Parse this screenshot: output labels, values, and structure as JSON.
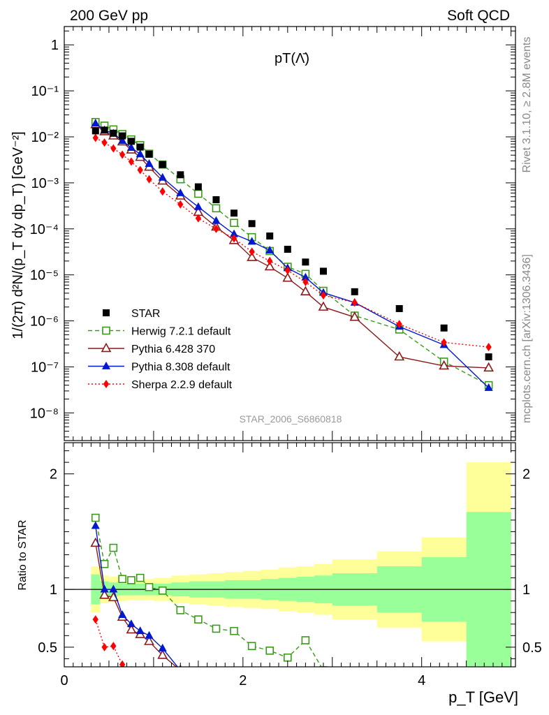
{
  "header": {
    "left": "200 GeV pp",
    "right": "Soft QCD"
  },
  "side": {
    "top": "Rivet 3.1.10, ≥ 2.8M events",
    "bottom": "mcplots.cern.ch [arXiv:1306.3436]"
  },
  "chart_data": [
    {
      "type": "scatter",
      "title": "pT(Λ̄)",
      "watermark": "STAR_2006_S6860818",
      "ylabel": "1/(2π) d²N/(p_T dy dp_T) [GeV⁻²]",
      "yscale": "log",
      "ylim": [
        2.5e-09,
        2.5
      ],
      "xlim": [
        0,
        5.05
      ],
      "ytick_labels": [
        "10⁻⁸",
        "10⁻⁷",
        "10⁻⁶",
        "10⁻⁵",
        "10⁻⁴",
        "10⁻³",
        "10⁻²",
        "10⁻¹",
        "1"
      ],
      "legend_position": "bottom-left",
      "series": [
        {
          "name": "STAR",
          "color": "#000000",
          "marker": "square-filled",
          "x": [
            0.35,
            0.45,
            0.55,
            0.65,
            0.75,
            0.85,
            0.95,
            1.1,
            1.3,
            1.5,
            1.7,
            1.9,
            2.1,
            2.3,
            2.5,
            2.7,
            2.9,
            3.25,
            3.75,
            4.25,
            4.75
          ],
          "y": [
            0.0135,
            0.014,
            0.012,
            0.0105,
            0.008,
            0.006,
            0.0042,
            0.0025,
            0.0015,
            0.00082,
            0.00043,
            0.00022,
            0.00013,
            7e-05,
            3.6e-05,
            1.9e-05,
            1.2e-05,
            4.3e-06,
            1.85e-06,
            7e-07,
            1.65e-07
          ]
        },
        {
          "name": "Herwig 7.2.1 default",
          "color": "#3a9a1a",
          "marker": "square-open",
          "line": "dashed",
          "x": [
            0.35,
            0.45,
            0.55,
            0.65,
            0.75,
            0.85,
            0.95,
            1.1,
            1.3,
            1.5,
            1.7,
            1.9,
            2.1,
            2.3,
            2.5,
            2.7,
            2.9,
            3.25,
            3.75,
            4.25,
            4.75
          ],
          "y": [
            0.021,
            0.0175,
            0.0145,
            0.0115,
            0.0088,
            0.0066,
            0.0043,
            0.0025,
            0.0012,
            0.00058,
            0.00028,
            0.000135,
            6.6e-05,
            3.3e-05,
            1.5e-05,
            1.05e-05,
            4.5e-06,
            1.3e-06,
            6.5e-07,
            1.3e-07,
            4e-08
          ]
        },
        {
          "name": "Pythia 6.428 370",
          "color": "#8b1a1a",
          "marker": "triangle-open",
          "line": "solid",
          "x": [
            0.35,
            0.45,
            0.55,
            0.65,
            0.75,
            0.85,
            0.95,
            1.1,
            1.3,
            1.5,
            1.7,
            1.9,
            2.1,
            2.3,
            2.5,
            2.7,
            2.9,
            3.25,
            3.75,
            4.25,
            4.75
          ],
          "y": [
            0.0185,
            0.013,
            0.0105,
            0.0078,
            0.0052,
            0.0036,
            0.0022,
            0.0011,
            0.00052,
            0.00023,
            0.00011,
            5.6e-05,
            2.4e-05,
            1.5e-05,
            8.5e-06,
            4.3e-06,
            2e-06,
            1.2e-06,
            1.65e-07,
            1.05e-07,
            9.5e-08
          ]
        },
        {
          "name": "Pythia 8.308 default",
          "color": "#0018d0",
          "marker": "triangle-filled",
          "line": "solid",
          "x": [
            0.35,
            0.45,
            0.55,
            0.65,
            0.75,
            0.85,
            0.95,
            1.1,
            1.3,
            1.5,
            1.7,
            1.9,
            2.1,
            2.3,
            2.5,
            2.7,
            2.9,
            3.25,
            3.75,
            4.25,
            4.75
          ],
          "y": [
            0.0195,
            0.014,
            0.0118,
            0.0082,
            0.0058,
            0.0042,
            0.0026,
            0.0013,
            0.0006,
            0.0003,
            0.00015,
            7.7e-05,
            5.3e-05,
            3.4e-05,
            1.4e-05,
            8.8e-06,
            4.1e-06,
            2.5e-06,
            7.5e-07,
            3e-07,
            3.5e-08
          ]
        },
        {
          "name": "Sherpa 2.2.9 default",
          "color": "#ff0000",
          "marker": "diamond-filled",
          "line": "dotted",
          "x": [
            0.35,
            0.45,
            0.55,
            0.65,
            0.75,
            0.85,
            0.95,
            1.1,
            1.3,
            1.5,
            1.7,
            1.9,
            2.1,
            2.3,
            2.5,
            2.7,
            2.9,
            3.25,
            3.75,
            4.25,
            4.75
          ],
          "y": [
            0.0095,
            0.0075,
            0.0056,
            0.0041,
            0.0029,
            0.0019,
            0.0012,
            0.00065,
            0.00034,
            0.00017,
            0.0001,
            6.2e-05,
            3.2e-05,
            2e-05,
            1.25e-05,
            7e-06,
            3.6e-06,
            2.5e-06,
            8.5e-07,
            3.4e-07,
            2.7e-07
          ]
        }
      ]
    },
    {
      "type": "line",
      "ylabel": "Ratio to STAR",
      "xlabel": "p_T [GeV]",
      "xlim": [
        0,
        5.05
      ],
      "ylim": [
        0.33,
        2.27
      ],
      "xtick_labels": [
        "0",
        "2",
        "4"
      ],
      "ytick_labels": [
        "0.5",
        "1",
        "2"
      ],
      "bands": {
        "inner_color": "#99ff99",
        "outer_color": "#ffff99",
        "bin_edges": [
          0.3,
          0.4,
          0.5,
          0.6,
          0.7,
          0.8,
          0.9,
          1.0,
          1.2,
          1.4,
          1.6,
          1.8,
          2.0,
          2.2,
          2.4,
          2.6,
          2.8,
          3.0,
          3.5,
          4.0,
          4.5,
          5.0
        ],
        "inner": [
          0.13,
          0.07,
          0.06,
          0.05,
          0.05,
          0.05,
          0.05,
          0.05,
          0.06,
          0.07,
          0.07,
          0.08,
          0.08,
          0.09,
          0.1,
          0.11,
          0.12,
          0.14,
          0.2,
          0.28,
          0.67
        ],
        "outer": [
          0.2,
          0.12,
          0.11,
          0.1,
          0.09,
          0.09,
          0.09,
          0.1,
          0.12,
          0.13,
          0.14,
          0.15,
          0.16,
          0.17,
          0.19,
          0.2,
          0.22,
          0.26,
          0.33,
          0.45,
          1.1
        ]
      },
      "series": [
        {
          "name": "Herwig 7.2.1 default",
          "color": "#3a9a1a",
          "marker": "square-open",
          "line": "dashed",
          "x": [
            0.35,
            0.45,
            0.55,
            0.65,
            0.75,
            0.85,
            0.95,
            1.1,
            1.3,
            1.5,
            1.7,
            1.9,
            2.1,
            2.3,
            2.5,
            2.7,
            2.9
          ],
          "y": [
            1.62,
            1.22,
            1.36,
            1.09,
            1.08,
            1.1,
            1.02,
            0.99,
            0.82,
            0.74,
            0.66,
            0.64,
            0.51,
            0.47,
            0.41,
            0.56,
            0.3
          ]
        },
        {
          "name": "Pythia 6.428 370",
          "color": "#8b1a1a",
          "marker": "triangle-open",
          "line": "solid",
          "x": [
            0.35,
            0.45,
            0.55,
            0.65,
            0.75,
            0.85,
            0.95,
            1.1,
            1.3
          ],
          "y": [
            1.4,
            0.95,
            0.93,
            0.76,
            0.65,
            0.61,
            0.55,
            0.43,
            0.3
          ]
        },
        {
          "name": "Pythia 8.308 default",
          "color": "#0018d0",
          "marker": "triangle-filled",
          "line": "solid",
          "x": [
            0.35,
            0.45,
            0.55,
            0.65,
            0.75,
            0.85,
            0.95,
            1.1,
            1.3
          ],
          "y": [
            1.55,
            1.0,
            1.0,
            0.78,
            0.7,
            0.64,
            0.6,
            0.49,
            0.3
          ]
        },
        {
          "name": "Sherpa 2.2.9 default",
          "color": "#ff0000",
          "marker": "diamond-filled",
          "line": "dotted",
          "x": [
            0.35,
            0.45,
            0.55,
            0.65,
            0.75
          ],
          "y": [
            0.74,
            0.5,
            0.51,
            0.35,
            0.3
          ]
        }
      ]
    }
  ]
}
